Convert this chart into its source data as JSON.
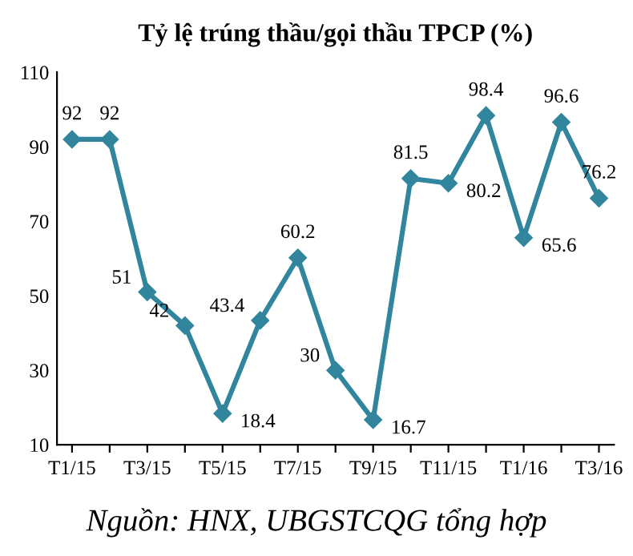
{
  "chart_data": {
    "type": "line",
    "title": "Tỷ lệ trúng thầu/gọi thầu TPCP (%)",
    "categories": [
      "T1/15",
      null,
      "T3/15",
      null,
      "T5/15",
      null,
      "T7/15",
      null,
      "T9/15",
      null,
      "T11/15",
      null,
      "T1/16",
      null,
      "T3/16"
    ],
    "series": [
      {
        "color": "#31859c",
        "values": [
          92,
          92,
          51,
          42,
          18.4,
          43.4,
          60.2,
          30,
          16.7,
          81.5,
          80.2,
          98.4,
          65.6,
          96.6,
          76.2
        ]
      }
    ],
    "ylim": [
      10,
      110
    ],
    "yticks": [
      10,
      30,
      50,
      70,
      90,
      110
    ],
    "grid": false,
    "marker": "diamond",
    "line_style": "solid",
    "data_labels": true,
    "legend": false,
    "annotations": [
      "Nguồn: HNX, UBGSTCQG tổng hợp"
    ]
  }
}
